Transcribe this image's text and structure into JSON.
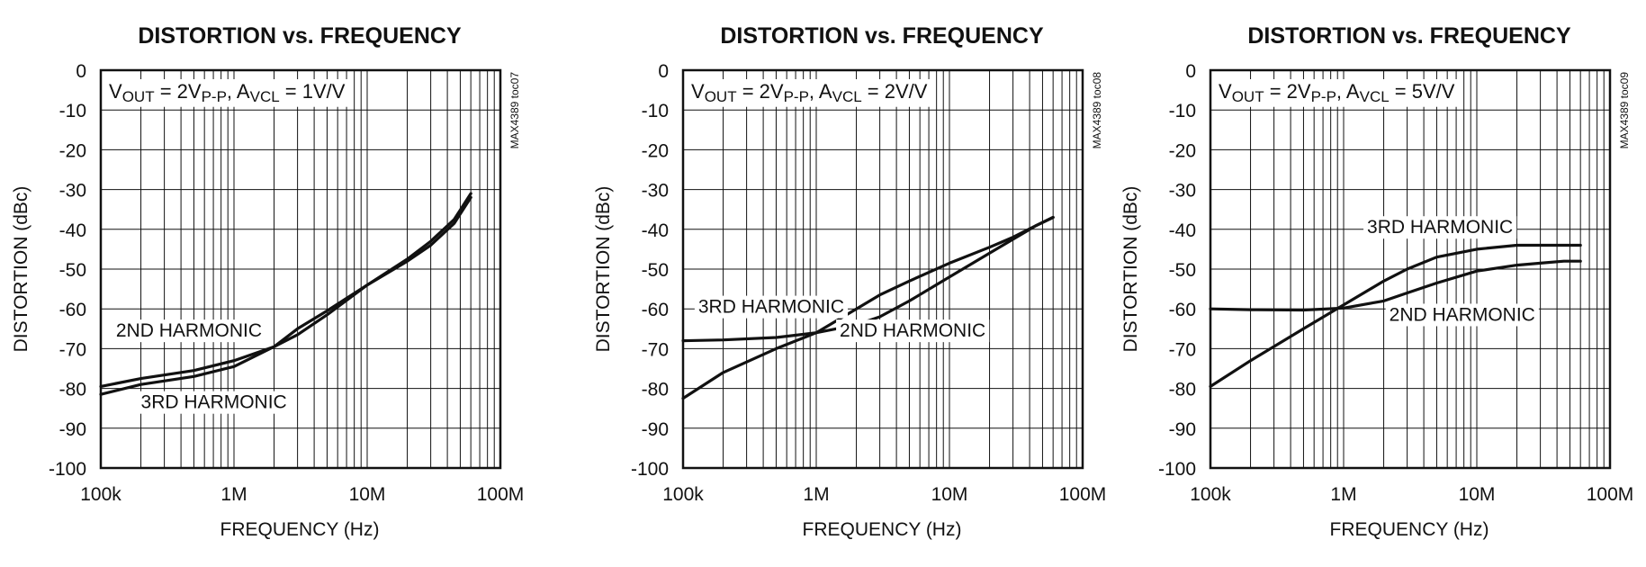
{
  "chart_data": [
    {
      "type": "line",
      "title": "DISTORTION vs. FREQUENCY",
      "condition": {
        "v_main": "V",
        "v_sub": "OUT",
        "v_val": " = 2V",
        "v_val_sub": "P-P",
        "sep": ", ",
        "a_main": "A",
        "a_sub": "VCL",
        "a_val": " = 1V/V"
      },
      "toc": "MAX4389 toc07",
      "xlabel": "FREQUENCY (Hz)",
      "ylabel": "DISTORTION (dBc)",
      "xscale": "log",
      "xlim": [
        100000,
        100000000
      ],
      "ylim": [
        -100,
        0
      ],
      "grid": true,
      "x_ticks": [
        {
          "value": 100000,
          "label": "100k"
        },
        {
          "value": 1000000,
          "label": "1M"
        },
        {
          "value": 10000000,
          "label": "10M"
        },
        {
          "value": 100000000,
          "label": "100M"
        }
      ],
      "y_ticks": [
        {
          "value": 0,
          "label": "0"
        },
        {
          "value": -10,
          "label": "-10"
        },
        {
          "value": -20,
          "label": "-20"
        },
        {
          "value": -30,
          "label": "-30"
        },
        {
          "value": -40,
          "label": "-40"
        },
        {
          "value": -50,
          "label": "-50"
        },
        {
          "value": -60,
          "label": "-60"
        },
        {
          "value": -70,
          "label": "-70"
        },
        {
          "value": -80,
          "label": "-80"
        },
        {
          "value": -90,
          "label": "-90"
        },
        {
          "value": -100,
          "label": "-100"
        }
      ],
      "series": [
        {
          "name": "2ND HARMONIC",
          "label_at": [
            130000,
            -67
          ],
          "x": [
            100000,
            200000,
            500000,
            1000000,
            2000000,
            3000000,
            5000000,
            10000000,
            20000000,
            30000000,
            45000000,
            60000000
          ],
          "y": [
            -79.5,
            -77.5,
            -75.5,
            -73,
            -69.5,
            -66.5,
            -61.5,
            -54,
            -48,
            -44,
            -38.5,
            -32
          ]
        },
        {
          "name": "3RD HARMONIC",
          "label_at": [
            200000,
            -85
          ],
          "x": [
            100000,
            200000,
            500000,
            1000000,
            2000000,
            3000000,
            5000000,
            10000000,
            20000000,
            30000000,
            45000000,
            60000000
          ],
          "y": [
            -81.5,
            -79,
            -77,
            -74.5,
            -69.5,
            -65,
            -60.5,
            -54,
            -47.5,
            -43,
            -37.5,
            -31
          ]
        }
      ]
    },
    {
      "type": "line",
      "title": "DISTORTION vs. FREQUENCY",
      "condition": {
        "v_main": "V",
        "v_sub": "OUT",
        "v_val": " = 2V",
        "v_val_sub": "P-P",
        "sep": ", ",
        "a_main": "A",
        "a_sub": "VCL",
        "a_val": " = 2V/V"
      },
      "toc": "MAX4389 toc08",
      "xlabel": "FREQUENCY (Hz)",
      "ylabel": "DISTORTION (dBc)",
      "xscale": "log",
      "xlim": [
        100000,
        100000000
      ],
      "ylim": [
        -100,
        0
      ],
      "grid": true,
      "x_ticks": [
        {
          "value": 100000,
          "label": "100k"
        },
        {
          "value": 1000000,
          "label": "1M"
        },
        {
          "value": 10000000,
          "label": "10M"
        },
        {
          "value": 100000000,
          "label": "100M"
        }
      ],
      "y_ticks": [
        {
          "value": 0,
          "label": "0"
        },
        {
          "value": -10,
          "label": "-10"
        },
        {
          "value": -20,
          "label": "-20"
        },
        {
          "value": -30,
          "label": "-30"
        },
        {
          "value": -40,
          "label": "-40"
        },
        {
          "value": -50,
          "label": "-50"
        },
        {
          "value": -60,
          "label": "-60"
        },
        {
          "value": -70,
          "label": "-70"
        },
        {
          "value": -80,
          "label": "-80"
        },
        {
          "value": -90,
          "label": "-90"
        },
        {
          "value": -100,
          "label": "-100"
        }
      ],
      "series": [
        {
          "name": "3RD HARMONIC",
          "label_at": [
            130000,
            -61
          ],
          "x": [
            100000,
            200000,
            500000,
            1000000,
            2000000,
            3000000,
            5000000,
            10000000,
            20000000,
            30000000,
            45000000,
            60000000
          ],
          "y": [
            -68,
            -67.8,
            -67.2,
            -66,
            -60,
            -56.5,
            -53,
            -48.5,
            -44.5,
            -42,
            -39,
            -37
          ]
        },
        {
          "name": "2ND HARMONIC",
          "label_at": [
            1500000,
            -67
          ],
          "x": [
            100000,
            200000,
            500000,
            1000000,
            2000000,
            3000000,
            5000000,
            10000000,
            20000000,
            30000000,
            45000000,
            60000000
          ],
          "y": [
            -82.5,
            -76,
            -70,
            -66,
            -64,
            -62,
            -58,
            -52,
            -46,
            -42.5,
            -39,
            -37
          ]
        }
      ]
    },
    {
      "type": "line",
      "title": "DISTORTION vs. FREQUENCY",
      "condition": {
        "v_main": "V",
        "v_sub": "OUT",
        "v_val": " = 2V",
        "v_val_sub": "P-P",
        "sep": ", ",
        "a_main": "A",
        "a_sub": "VCL",
        "a_val": " = 5V/V"
      },
      "toc": "MAX4389 toc09",
      "xlabel": "FREQUENCY (Hz)",
      "ylabel": "DISTORTION (dBc)",
      "xscale": "log",
      "xlim": [
        100000,
        100000000
      ],
      "ylim": [
        -100,
        0
      ],
      "grid": true,
      "x_ticks": [
        {
          "value": 100000,
          "label": "100k"
        },
        {
          "value": 1000000,
          "label": "1M"
        },
        {
          "value": 10000000,
          "label": "10M"
        },
        {
          "value": 100000000,
          "label": "100M"
        }
      ],
      "y_ticks": [
        {
          "value": 0,
          "label": "0"
        },
        {
          "value": -10,
          "label": "-10"
        },
        {
          "value": -20,
          "label": "-20"
        },
        {
          "value": -30,
          "label": "-30"
        },
        {
          "value": -40,
          "label": "-40"
        },
        {
          "value": -50,
          "label": "-50"
        },
        {
          "value": -60,
          "label": "-60"
        },
        {
          "value": -70,
          "label": "-70"
        },
        {
          "value": -80,
          "label": "-80"
        },
        {
          "value": -90,
          "label": "-90"
        },
        {
          "value": -100,
          "label": "-100"
        }
      ],
      "series": [
        {
          "name": "3RD HARMONIC",
          "label_at": [
            1500000,
            -41
          ],
          "x": [
            100000,
            200000,
            500000,
            1000000,
            2000000,
            3000000,
            5000000,
            10000000,
            20000000,
            30000000,
            45000000,
            60000000
          ],
          "y": [
            -79.5,
            -73,
            -65,
            -59,
            -53,
            -50,
            -47,
            -45,
            -44,
            -44,
            -44,
            -44
          ]
        },
        {
          "name": "2ND HARMONIC",
          "label_at": [
            2200000,
            -63
          ],
          "x": [
            100000,
            200000,
            500000,
            1000000,
            2000000,
            3000000,
            5000000,
            10000000,
            20000000,
            30000000,
            45000000,
            60000000
          ],
          "y": [
            -60,
            -60.2,
            -60.3,
            -59.8,
            -58,
            -56,
            -53.5,
            -50.5,
            -49,
            -48.5,
            -48,
            -48
          ]
        }
      ]
    }
  ]
}
